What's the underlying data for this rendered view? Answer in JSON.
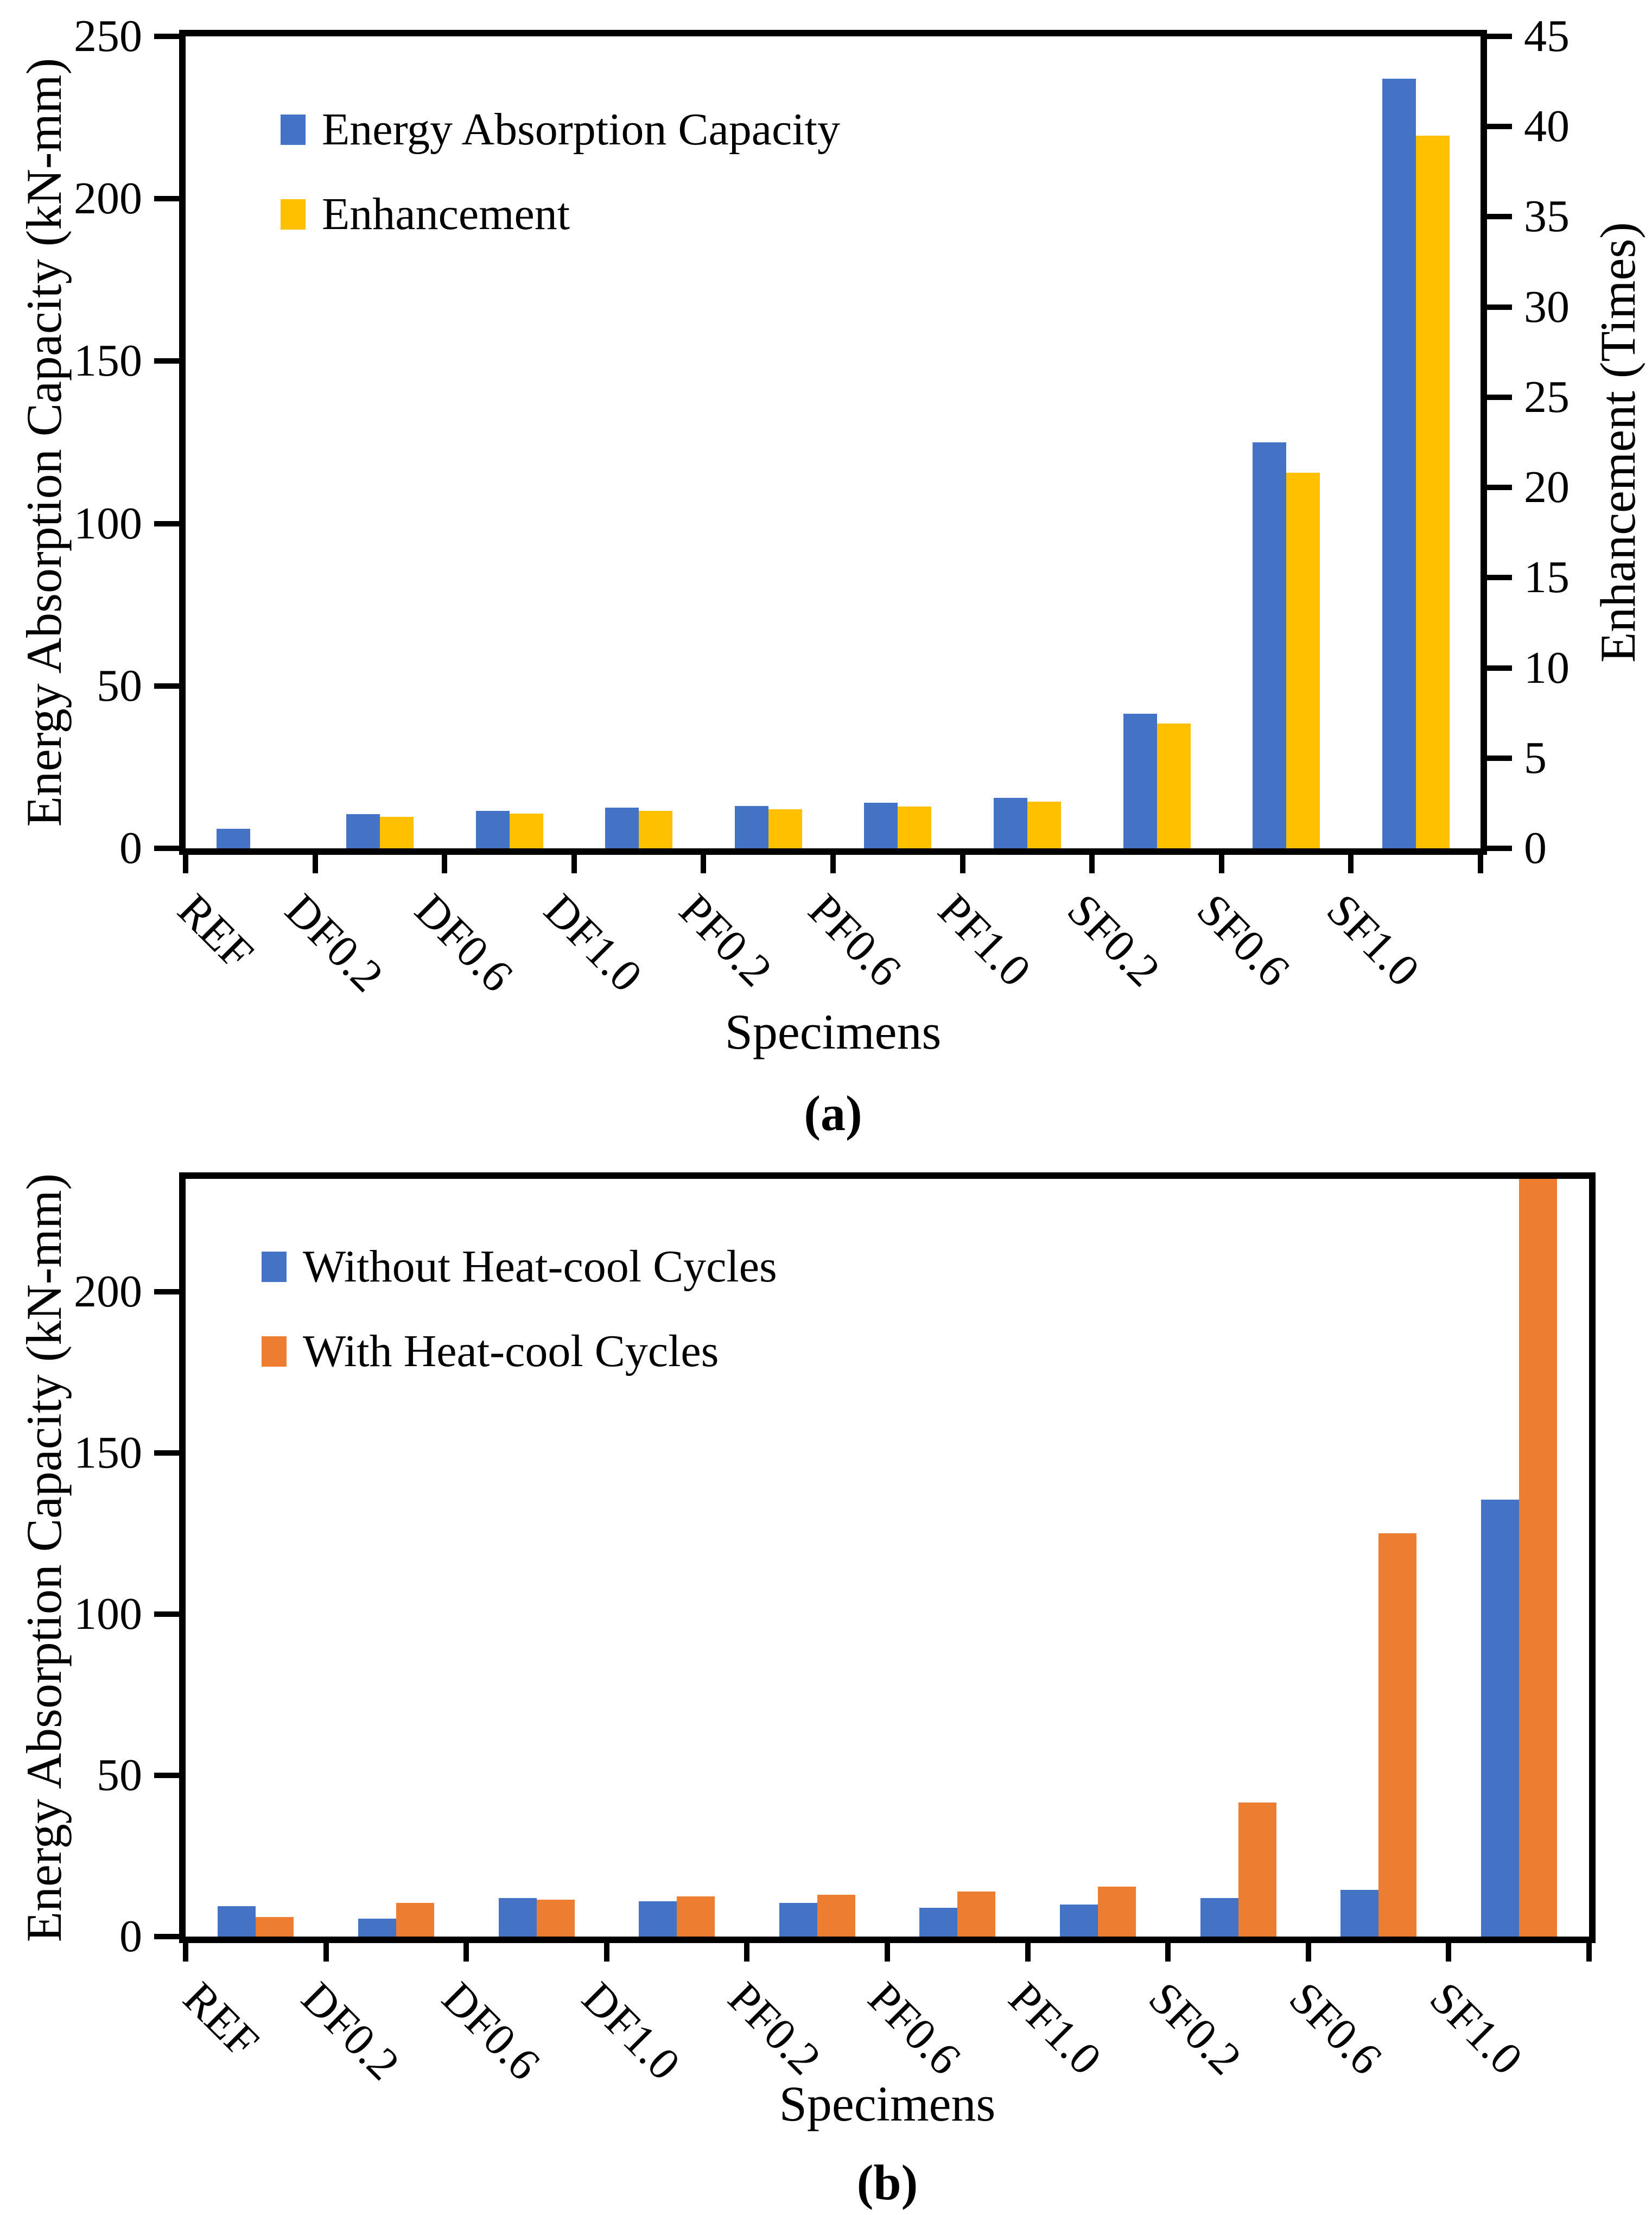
{
  "figure": {
    "background": "#ffffff",
    "axis_color": "#000000",
    "text_color": "#000000"
  },
  "colors": {
    "energy_blue": "#4472C4",
    "enhancement_yellow": "#FFC000",
    "heatcool_orange": "#ED7D31"
  },
  "chart_data": [
    {
      "id": "a",
      "type": "bar",
      "caption": "(a)",
      "xlabel": "Specimens",
      "legend_position": "top-left-inside",
      "grid": false,
      "categories": [
        "REF",
        "DF0.2",
        "DF0.6",
        "DF1.0",
        "PF0.2",
        "PF0.6",
        "PF1.0",
        "SF0.2",
        "SF0.6",
        "SF1.0"
      ],
      "y_left": {
        "title": "Energy Absorption Capacity (kN-mm)",
        "ticks": [
          0,
          50,
          100,
          150,
          200,
          250
        ],
        "min": 0,
        "max": 250,
        "frame_value": 250
      },
      "y_right": {
        "title": "Enhancement (Times)",
        "ticks": [
          0,
          5,
          10,
          15,
          20,
          25,
          30,
          35,
          40,
          45
        ],
        "min": 0,
        "max": 45,
        "frame_value": 45
      },
      "series": [
        {
          "name": "Energy Absorption Capacity",
          "axis": "left",
          "color": "#4472C4",
          "values": [
            6,
            10.5,
            11.5,
            12.5,
            13,
            14,
            15.5,
            41.5,
            125,
            237
          ]
        },
        {
          "name": "Enhancement",
          "axis": "right",
          "color": "#FFC000",
          "values": [
            0,
            1.75,
            1.92,
            2.08,
            2.17,
            2.33,
            2.58,
            6.92,
            20.83,
            39.5
          ]
        }
      ]
    },
    {
      "id": "b",
      "type": "bar",
      "caption": "(b)",
      "xlabel": "Specimens",
      "legend_position": "top-left-inside",
      "grid": false,
      "categories": [
        "REF",
        "DF0.2",
        "DF0.6",
        "DF1.0",
        "PF0.2",
        "PF0.6",
        "PF1.0",
        "SF0.2",
        "SF0.6",
        "SF1.0"
      ],
      "y_left": {
        "title": "Energy Absorption Capacity (kN-mm)",
        "ticks": [
          0,
          50,
          100,
          150,
          200
        ],
        "min": 0,
        "max": 235,
        "frame_value": 235
      },
      "series": [
        {
          "name": "Without Heat-cool Cycles",
          "axis": "left",
          "color": "#4472C4",
          "values": [
            9.5,
            5.5,
            12,
            11,
            10.5,
            9,
            10,
            12,
            14.5,
            135.5
          ]
        },
        {
          "name": "With Heat-cool Cycles",
          "axis": "left",
          "color": "#ED7D31",
          "values": [
            6,
            10.5,
            11.5,
            12.5,
            13,
            14,
            15.5,
            41.5,
            125,
            237
          ]
        }
      ]
    }
  ]
}
